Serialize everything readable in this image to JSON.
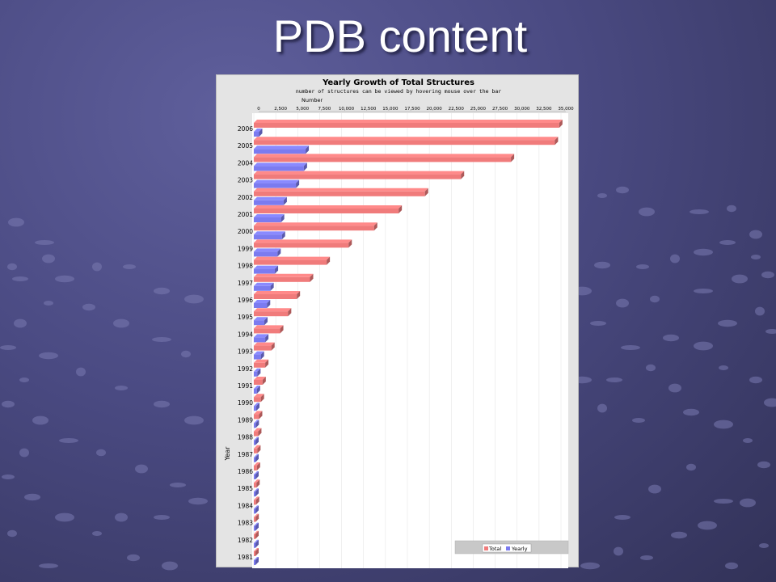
{
  "slide": {
    "title": "PDB content"
  },
  "chart_data": {
    "type": "bar",
    "orientation": "horizontal",
    "title": "Yearly Growth of Total Structures",
    "subtitle": "number of structures can be viewed by hovering mouse over the bar",
    "xlabel": "Number",
    "ylabel": "Year",
    "xlim": [
      0,
      35000
    ],
    "xticks": [
      "0",
      "2,500",
      "5,000",
      "7,500",
      "10,000",
      "12,500",
      "15,000",
      "17,500",
      "20,000",
      "22,500",
      "25,000",
      "27,500",
      "30,000",
      "32,500",
      "35,000"
    ],
    "categories": [
      "2006",
      "2005",
      "2004",
      "2003",
      "2002",
      "2001",
      "2000",
      "1999",
      "1998",
      "1997",
      "1996",
      "1995",
      "1994",
      "1993",
      "1992",
      "1991",
      "1990",
      "1989",
      "1988",
      "1987",
      "1986",
      "1985",
      "1984",
      "1983",
      "1982",
      "1981"
    ],
    "series": [
      {
        "name": "Total",
        "color": "#f07b7b",
        "values": [
          34800,
          34300,
          29300,
          23600,
          19500,
          16500,
          13700,
          10800,
          8300,
          6400,
          4900,
          3900,
          3000,
          2000,
          1300,
          1000,
          800,
          600,
          500,
          400,
          350,
          300,
          250,
          200,
          150,
          100
        ]
      },
      {
        "name": "Yearly",
        "color": "#7b7bf0",
        "values": [
          600,
          5900,
          5700,
          4800,
          3400,
          3100,
          3200,
          2700,
          2400,
          1900,
          1500,
          1200,
          1300,
          800,
          400,
          350,
          280,
          220,
          160,
          130,
          110,
          100,
          90,
          80,
          60,
          50
        ]
      }
    ],
    "grid": true,
    "legend_position": "bottom-right"
  }
}
